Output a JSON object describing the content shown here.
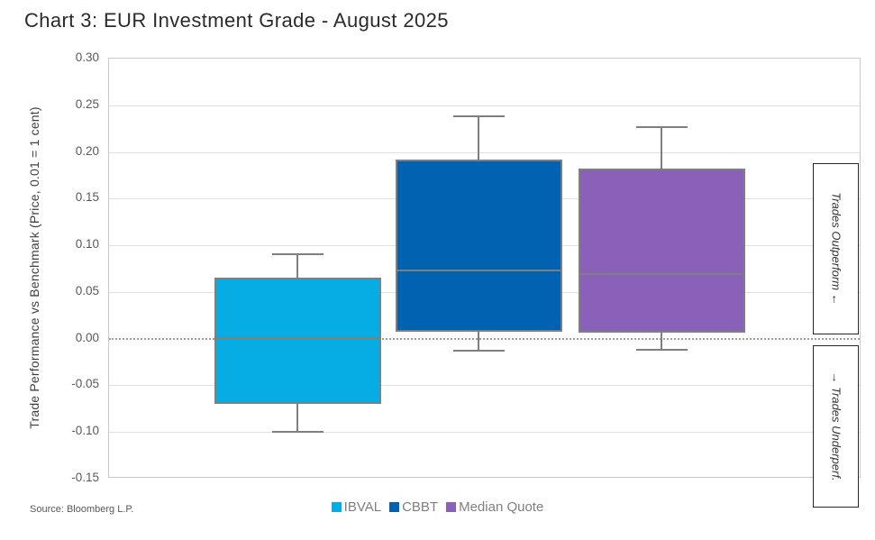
{
  "page": {
    "source": "Source: Bloomberg L.P."
  },
  "annotations": {
    "outperform_label": "Trades Outperform ←",
    "underperform_label": "→ Trades Underperf."
  },
  "chart_data": {
    "type": "boxplot",
    "title": "Chart 3: EUR Investment Grade - August 2025",
    "xlabel": "",
    "ylabel": "Trade Performance vs Benchmark (Price, 0.01 = 1 cent)",
    "ylim": [
      -0.15,
      0.3
    ],
    "ytick_step": 0.05,
    "ytick_format_decimals": 2,
    "grid": true,
    "zero_reference_line": true,
    "legend_position": "bottom",
    "series": [
      {
        "name": "IBVAL",
        "color": "#05ADE4",
        "whisker_low": -0.1,
        "q1": -0.07,
        "median": 0.001,
        "q3": 0.065,
        "whisker_high": 0.09
      },
      {
        "name": "CBBT",
        "color": "#0062B0",
        "whisker_low": -0.013,
        "q1": 0.007,
        "median": 0.073,
        "q3": 0.192,
        "whisker_high": 0.238
      },
      {
        "name": "Median Quote",
        "color": "#8A61B8",
        "whisker_low": -0.012,
        "q1": 0.006,
        "median": 0.069,
        "q3": 0.182,
        "whisker_high": 0.227
      }
    ],
    "colors": {
      "box_border": "#7F7F7F",
      "gridline": "#E0E0E0",
      "plot_border": "#C9C9C9",
      "zero_line": "#9E9E9E",
      "tick_text": "#595959",
      "legend_text": "#7F7F7F",
      "title_text": "#2B2B2B",
      "annotation_border": "#262626"
    }
  }
}
